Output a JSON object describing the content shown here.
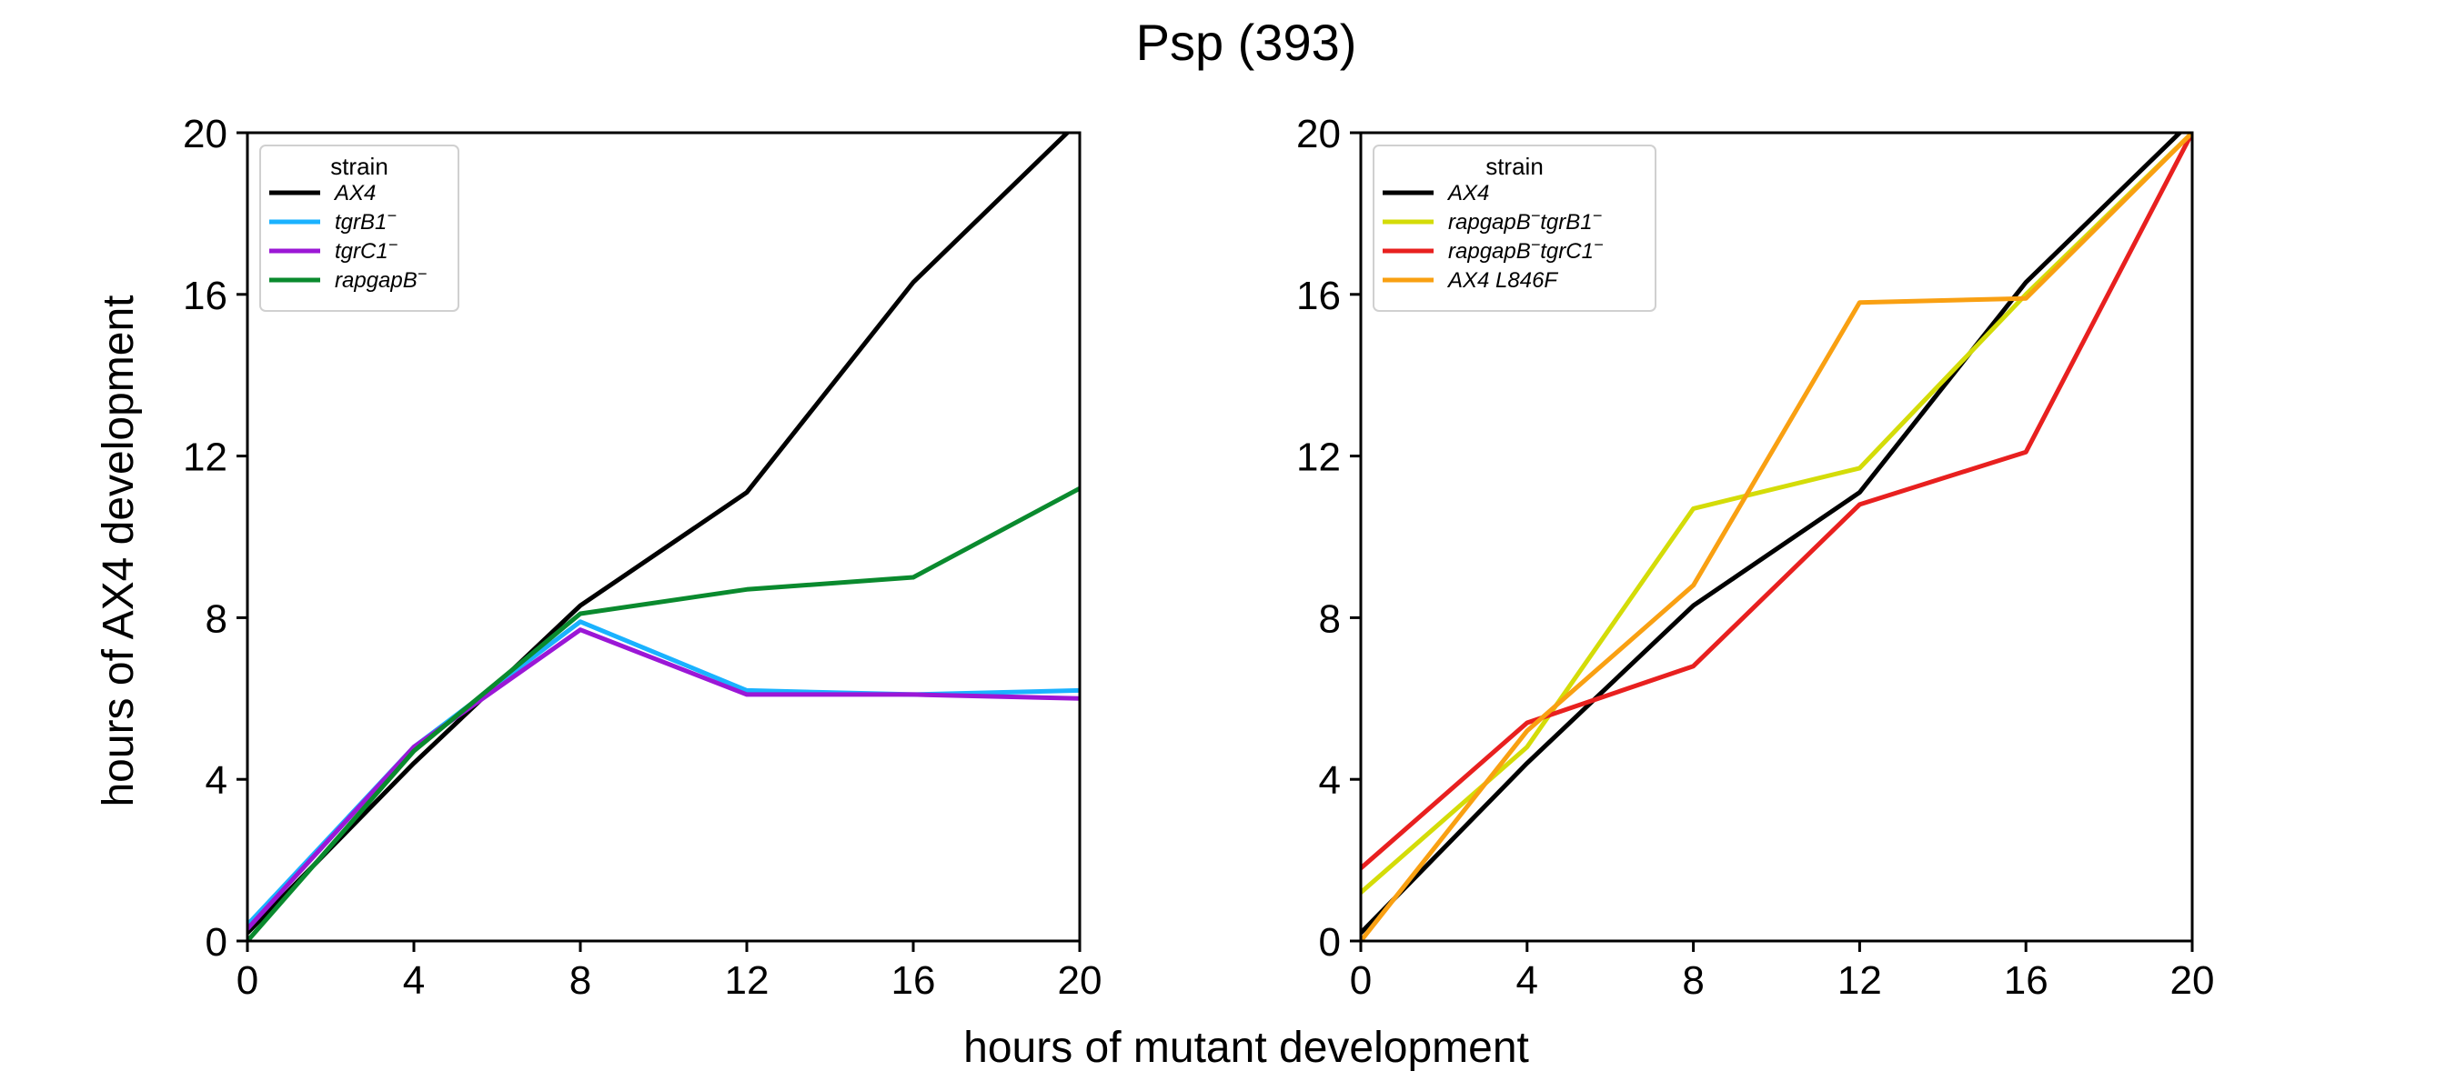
{
  "figure": {
    "title": "Psp (393)",
    "xlabel": "hours of mutant development",
    "ylabel": "hours of AX4 development"
  },
  "chart_data": [
    {
      "type": "line",
      "xlim": [
        0,
        20
      ],
      "ylim": [
        0,
        20
      ],
      "xticks": [
        0,
        4,
        8,
        12,
        16,
        20
      ],
      "yticks": [
        0,
        4,
        8,
        12,
        16,
        20
      ],
      "grid": false,
      "legend": {
        "title": "strain",
        "placement": "top-left"
      },
      "x": [
        0,
        4,
        8,
        12,
        16,
        20
      ],
      "series": [
        {
          "name": "AX4",
          "label_base": "AX4",
          "label_sup": "",
          "color": "#000000",
          "values": [
            0.2,
            4.4,
            8.3,
            11.1,
            16.3,
            20.3
          ]
        },
        {
          "name": "tgrB1⁻",
          "label_base": "tgrB1",
          "label_sup": "−",
          "color": "#1ab2ff",
          "values": [
            0.4,
            4.8,
            7.9,
            6.2,
            6.1,
            6.2
          ]
        },
        {
          "name": "tgrC1⁻",
          "label_base": "tgrC1",
          "label_sup": "−",
          "color": "#9b17d6",
          "values": [
            0.3,
            4.8,
            7.7,
            6.1,
            6.1,
            6.0
          ]
        },
        {
          "name": "rapgapB⁻",
          "label_base": "rapgapB",
          "label_sup": "−",
          "color": "#0a8a2e",
          "values": [
            0.0,
            4.7,
            8.1,
            8.7,
            9.0,
            11.2
          ]
        }
      ]
    },
    {
      "type": "line",
      "xlim": [
        0,
        20
      ],
      "ylim": [
        0,
        20
      ],
      "xticks": [
        0,
        4,
        8,
        12,
        16,
        20
      ],
      "yticks": [
        0,
        4,
        8,
        12,
        16,
        20
      ],
      "grid": false,
      "legend": {
        "title": "strain",
        "placement": "top-left"
      },
      "x": [
        0,
        4,
        8,
        12,
        16,
        20
      ],
      "series": [
        {
          "name": "AX4",
          "label_base": "AX4",
          "label_sup": "",
          "color": "#000000",
          "values": [
            0.2,
            4.4,
            8.3,
            11.1,
            16.3,
            20.3
          ]
        },
        {
          "name": "rapgapB⁻tgrB1⁻",
          "label_base": "rapgapB",
          "label_sup": "−",
          "label_base2": "tgrB1",
          "label_sup2": "−",
          "color": "#d4dc08",
          "values": [
            1.2,
            4.8,
            10.7,
            11.7,
            16.0,
            20.0
          ]
        },
        {
          "name": "rapgapB⁻tgrC1⁻",
          "label_base": "rapgapB",
          "label_sup": "−",
          "label_base2": "tgrC1",
          "label_sup2": "−",
          "color": "#e8201f",
          "values": [
            1.8,
            5.4,
            6.8,
            10.8,
            12.1,
            20.0
          ]
        },
        {
          "name": "AX4 L846F",
          "label_base": "AX4 L846F",
          "label_sup": "",
          "color": "#f9a012",
          "values": [
            0.0,
            5.2,
            8.8,
            15.8,
            15.9,
            20.0
          ]
        }
      ]
    }
  ]
}
